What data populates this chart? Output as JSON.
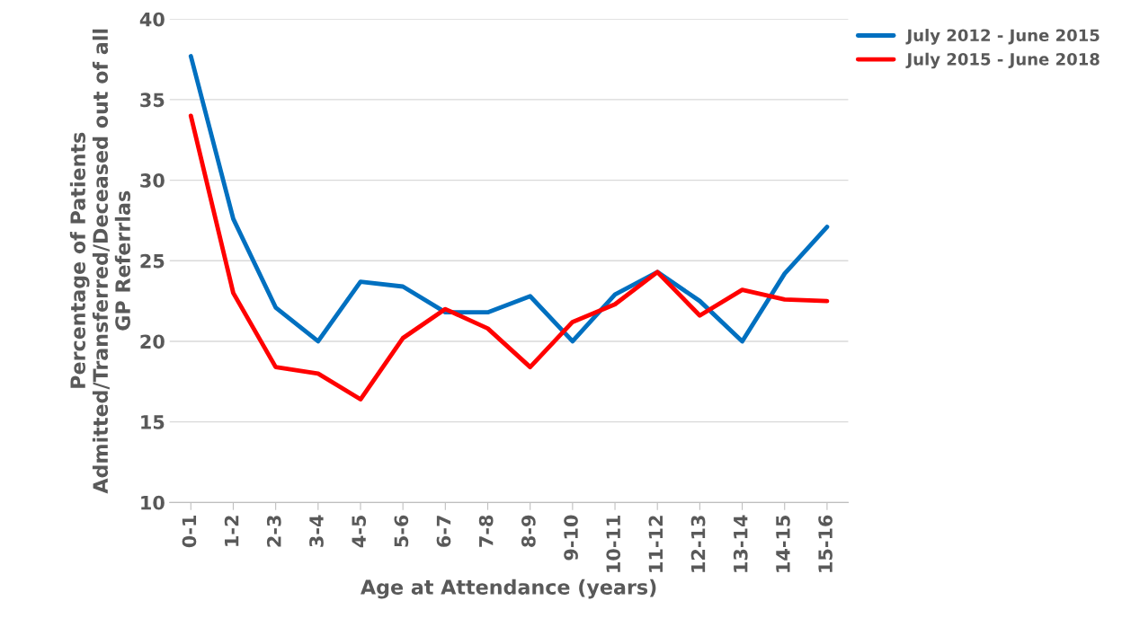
{
  "chart_data": {
    "type": "line",
    "xlabel": "Age at Attendance (years)",
    "ylabel": "Percentage of Patients\nAdmitted/Transferred/Deceased out of all\nGP Referrlas",
    "categories": [
      "0-1",
      "1-2",
      "2-3",
      "3-4",
      "4-5",
      "5-6",
      "6-7",
      "7-8",
      "8-9",
      "9-10",
      "10-11",
      "11-12",
      "12-13",
      "13-14",
      "14-15",
      "15-16"
    ],
    "series": [
      {
        "name": "July 2012 - June 2015",
        "color": "#0070c0",
        "values": [
          37.7,
          27.6,
          22.1,
          20.0,
          23.7,
          23.4,
          21.8,
          21.8,
          22.8,
          20.0,
          22.9,
          24.3,
          22.5,
          20.0,
          24.2,
          27.1
        ]
      },
      {
        "name": "July 2015 - June 2018",
        "color": "#ff0000",
        "values": [
          34.0,
          23.0,
          18.4,
          18.0,
          16.4,
          20.2,
          22.0,
          20.8,
          18.4,
          21.2,
          22.3,
          24.3,
          21.6,
          23.2,
          22.6,
          22.5
        ]
      }
    ],
    "ylim": [
      10,
      40
    ],
    "yticks": [
      10,
      15,
      20,
      25,
      30,
      35,
      40
    ],
    "grid": "y",
    "legend": "top right",
    "line_style": "solid",
    "marker": "none"
  }
}
